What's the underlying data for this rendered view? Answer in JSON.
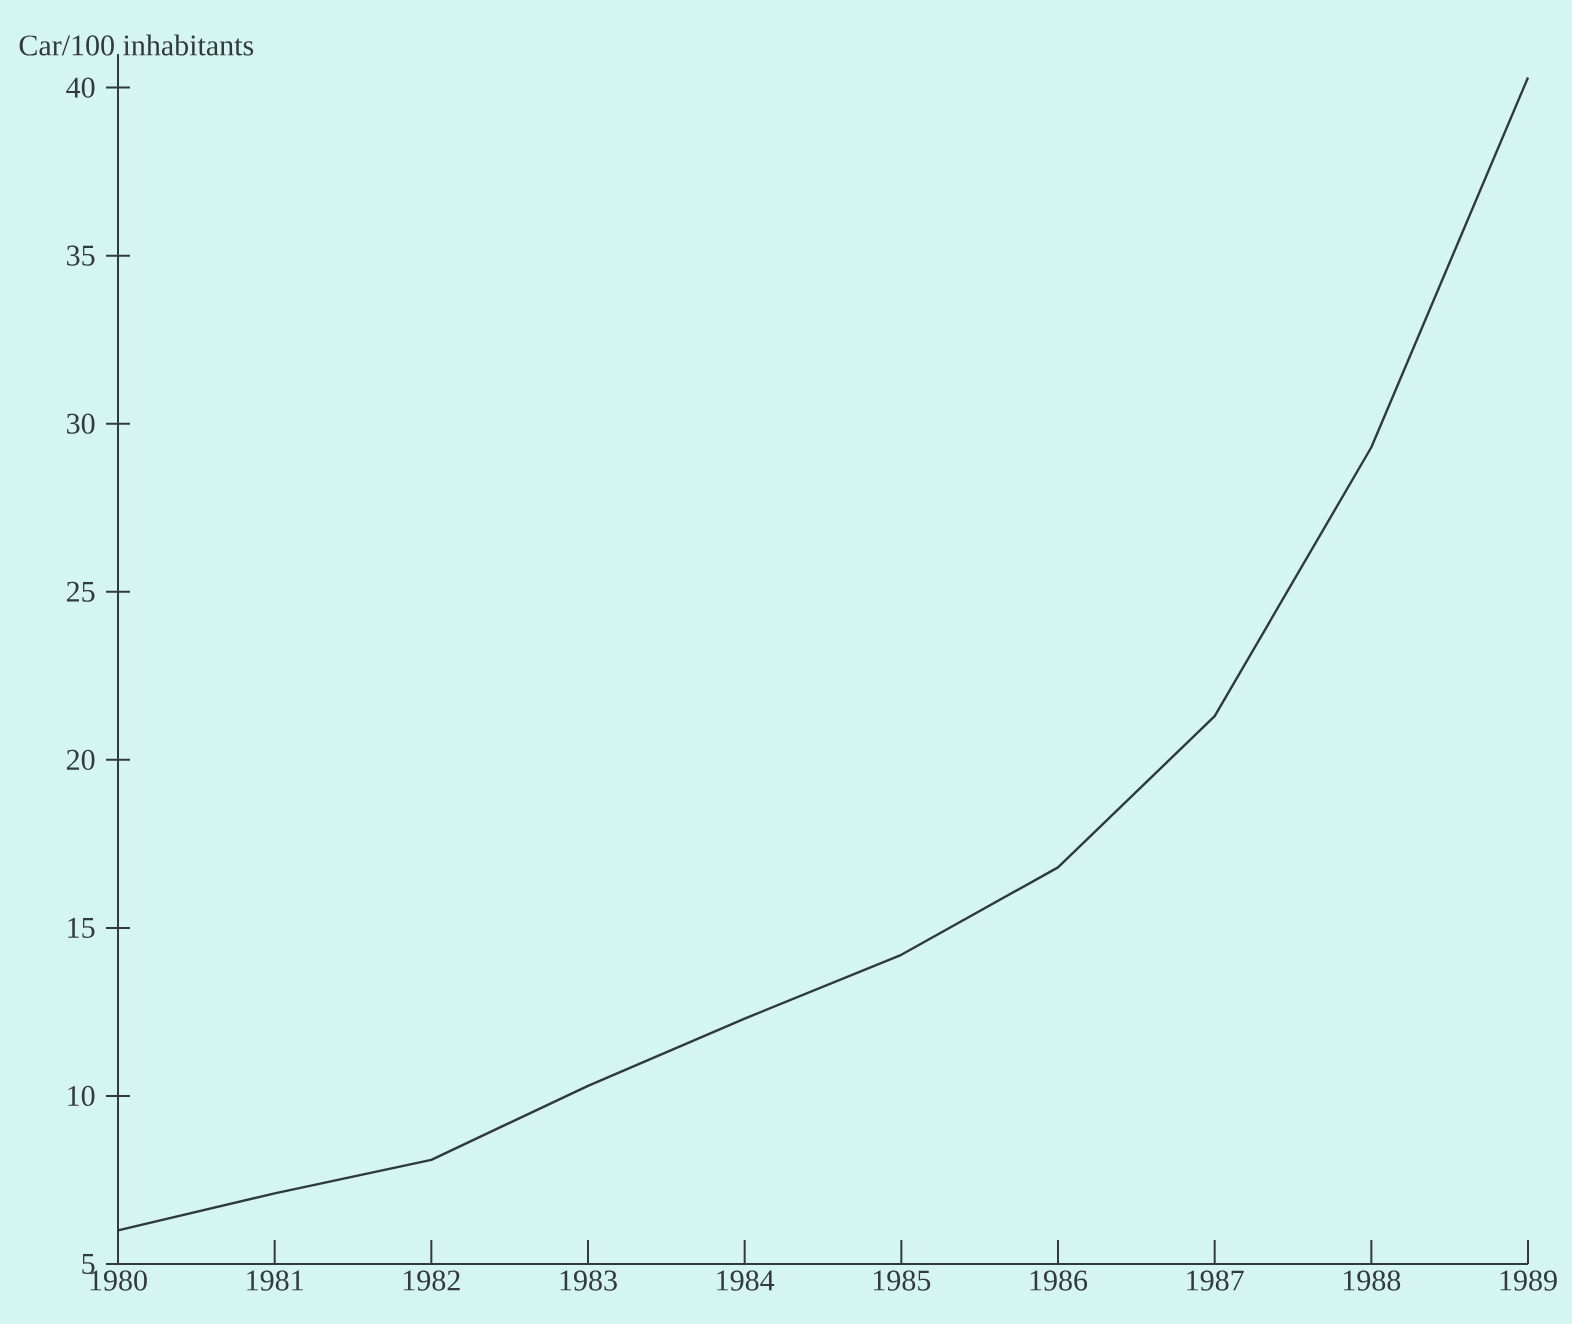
{
  "chart_data": {
    "type": "line",
    "ylabel": "Car/100 inhabitants",
    "x": [
      1980,
      1981,
      1982,
      1983,
      1984,
      1985,
      1986,
      1987,
      1988,
      1989
    ],
    "values": [
      6.0,
      7.1,
      8.1,
      10.3,
      12.3,
      14.2,
      16.8,
      21.3,
      29.3,
      40.3
    ],
    "color": "#2f3a3a",
    "xlim": [
      1980,
      1989
    ],
    "ylim": [
      5,
      41
    ],
    "xticks": [
      1980,
      1981,
      1982,
      1983,
      1984,
      1985,
      1986,
      1987,
      1988,
      1989
    ],
    "yticks": [
      5,
      10,
      15,
      20,
      25,
      30,
      35,
      40
    ]
  }
}
